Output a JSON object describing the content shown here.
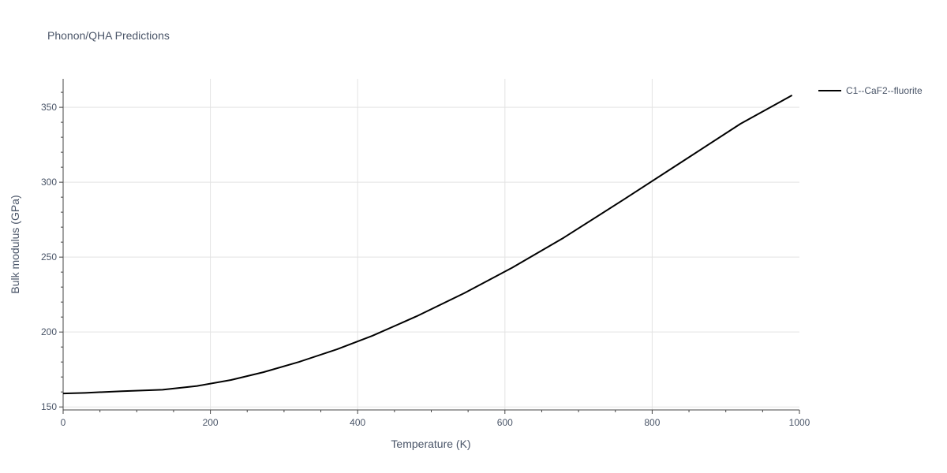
{
  "chart_data": {
    "type": "line",
    "title": "Phonon/QHA Predictions",
    "xlabel": "Temperature (K)",
    "ylabel": "Bulk modulus (GPa)",
    "xlim": [
      0,
      1000
    ],
    "ylim": [
      148,
      369
    ],
    "x_ticks": [
      0,
      200,
      400,
      600,
      800,
      1000
    ],
    "y_ticks": [
      150,
      200,
      250,
      300,
      350
    ],
    "grid": true,
    "legend_position": "top-right",
    "series": [
      {
        "name": "C1--CaF2--fluorite",
        "color": "#000000",
        "x": [
          0,
          30,
          80,
          135,
          182,
          228,
          272,
          320,
          372,
          420,
          480,
          545,
          610,
          680,
          760,
          840,
          920,
          990
        ],
        "y": [
          159,
          159.4,
          160.5,
          161.5,
          164,
          168,
          173.2,
          180,
          188.5,
          197.5,
          210.5,
          226,
          243,
          263,
          288,
          313.5,
          339,
          358
        ]
      }
    ]
  }
}
